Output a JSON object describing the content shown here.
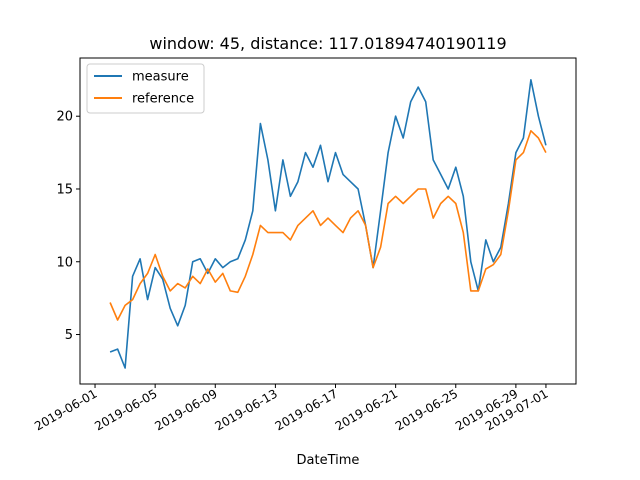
{
  "chart_data": {
    "type": "line",
    "title": "window: 45, distance: 117.01894740190119",
    "xlabel": "DateTime",
    "ylabel": "",
    "x_range": [
      "2019-05-31",
      "2019-07-03"
    ],
    "ylim": [
      1.6,
      24.0
    ],
    "x_ticks": [
      "2019-06-01",
      "2019-06-05",
      "2019-06-09",
      "2019-06-13",
      "2019-06-17",
      "2019-06-21",
      "2019-06-25",
      "2019-06-29",
      "2019-07-01"
    ],
    "y_ticks": [
      5,
      10,
      15,
      20
    ],
    "grid": false,
    "legend_position": "top-left",
    "series": [
      {
        "name": "measure",
        "color": "#1f77b4",
        "x": [
          "2019-06-02",
          "2019-06-02T12:00",
          "2019-06-03",
          "2019-06-03T12:00",
          "2019-06-04",
          "2019-06-04T12:00",
          "2019-06-05",
          "2019-06-05T12:00",
          "2019-06-06",
          "2019-06-06T12:00",
          "2019-06-07",
          "2019-06-07T12:00",
          "2019-06-08",
          "2019-06-08T12:00",
          "2019-06-09",
          "2019-06-09T12:00",
          "2019-06-10",
          "2019-06-10T12:00",
          "2019-06-11",
          "2019-06-11T12:00",
          "2019-06-12",
          "2019-06-12T12:00",
          "2019-06-13",
          "2019-06-13T12:00",
          "2019-06-14",
          "2019-06-14T12:00",
          "2019-06-15",
          "2019-06-15T12:00",
          "2019-06-16",
          "2019-06-16T12:00",
          "2019-06-17",
          "2019-06-17T12:00",
          "2019-06-18",
          "2019-06-18T12:00",
          "2019-06-19",
          "2019-06-19T12:00",
          "2019-06-20",
          "2019-06-20T12:00",
          "2019-06-21",
          "2019-06-21T12:00",
          "2019-06-22",
          "2019-06-22T12:00",
          "2019-06-23",
          "2019-06-23T12:00",
          "2019-06-24",
          "2019-06-24T12:00",
          "2019-06-25",
          "2019-06-25T12:00",
          "2019-06-26",
          "2019-06-26T12:00",
          "2019-06-27",
          "2019-06-27T12:00",
          "2019-06-28",
          "2019-06-28T12:00",
          "2019-06-29",
          "2019-06-29T12:00",
          "2019-06-30",
          "2019-06-30T12:00",
          "2019-07-01"
        ],
        "values": [
          3.8,
          4.0,
          2.7,
          9.0,
          10.2,
          7.4,
          9.6,
          8.8,
          6.8,
          5.6,
          7.0,
          10.0,
          10.2,
          9.2,
          10.2,
          9.6,
          10.0,
          10.2,
          11.5,
          13.5,
          19.5,
          17.0,
          13.5,
          17.0,
          14.5,
          15.5,
          17.5,
          16.5,
          18.0,
          15.5,
          17.5,
          16.0,
          15.5,
          15.0,
          12.5,
          9.6,
          13.5,
          17.5,
          20.0,
          18.5,
          21.0,
          22.0,
          21.0,
          17.0,
          16.0,
          15.0,
          16.5,
          14.5,
          10.0,
          8.0,
          11.5,
          10.0,
          11.0,
          14.0,
          17.5,
          18.5,
          22.5,
          20.0,
          18.0
        ]
      },
      {
        "name": "reference",
        "color": "#ff7f0e",
        "x": [
          "2019-06-02",
          "2019-06-02T12:00",
          "2019-06-03",
          "2019-06-03T12:00",
          "2019-06-04",
          "2019-06-04T12:00",
          "2019-06-05",
          "2019-06-05T12:00",
          "2019-06-06",
          "2019-06-06T12:00",
          "2019-06-07",
          "2019-06-07T12:00",
          "2019-06-08",
          "2019-06-08T12:00",
          "2019-06-09",
          "2019-06-09T12:00",
          "2019-06-10",
          "2019-06-10T12:00",
          "2019-06-11",
          "2019-06-11T12:00",
          "2019-06-12",
          "2019-06-12T12:00",
          "2019-06-13",
          "2019-06-13T12:00",
          "2019-06-14",
          "2019-06-14T12:00",
          "2019-06-15",
          "2019-06-15T12:00",
          "2019-06-16",
          "2019-06-16T12:00",
          "2019-06-17",
          "2019-06-17T12:00",
          "2019-06-18",
          "2019-06-18T12:00",
          "2019-06-19",
          "2019-06-19T12:00",
          "2019-06-20",
          "2019-06-20T12:00",
          "2019-06-21",
          "2019-06-21T12:00",
          "2019-06-22",
          "2019-06-22T12:00",
          "2019-06-23",
          "2019-06-23T12:00",
          "2019-06-24",
          "2019-06-24T12:00",
          "2019-06-25",
          "2019-06-25T12:00",
          "2019-06-26",
          "2019-06-26T12:00",
          "2019-06-27",
          "2019-06-27T12:00",
          "2019-06-28",
          "2019-06-28T12:00",
          "2019-06-29",
          "2019-06-29T12:00",
          "2019-06-30",
          "2019-06-30T12:00",
          "2019-07-01"
        ],
        "values": [
          7.2,
          6.0,
          7.0,
          7.4,
          8.5,
          9.2,
          10.5,
          9.0,
          8.0,
          8.5,
          8.2,
          9.0,
          8.5,
          9.5,
          8.6,
          9.2,
          8.0,
          7.9,
          9.0,
          10.5,
          12.5,
          12.0,
          12.0,
          12.0,
          11.5,
          12.5,
          13.0,
          13.5,
          12.5,
          13.0,
          12.5,
          12.0,
          13.0,
          13.5,
          12.5,
          9.6,
          11.0,
          14.0,
          14.5,
          14.0,
          14.5,
          15.0,
          15.0,
          13.0,
          14.0,
          14.5,
          14.0,
          12.0,
          8.0,
          8.0,
          9.5,
          9.8,
          10.5,
          13.5,
          17.0,
          17.5,
          19.0,
          18.5,
          17.5
        ]
      }
    ]
  }
}
